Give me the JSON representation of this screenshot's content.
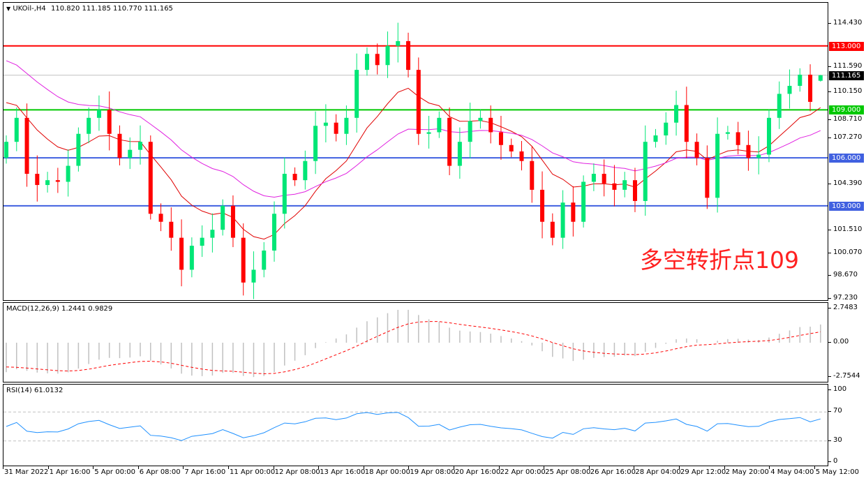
{
  "header": {
    "symbol": "UKOil-,H4",
    "ohlc": "110.820 111.185 110.770 111.165",
    "dropdown_icon": "triangle-down-icon"
  },
  "annotation": "多空转折点109",
  "price_axis": [
    "114.430",
    "111.590",
    "110.150",
    "108.710",
    "107.270",
    "104.390",
    "101.510",
    "100.070",
    "98.670",
    "97.230"
  ],
  "levels": [
    {
      "label": "113.000",
      "value": 113.0,
      "color": "#ff0000"
    },
    {
      "label": "109.000",
      "value": 109.0,
      "color": "#00c800"
    },
    {
      "label": "106.000",
      "value": 106.0,
      "color": "#4060e0"
    },
    {
      "label": "103.000",
      "value": 103.0,
      "color": "#4060e0"
    }
  ],
  "current_price": {
    "label": "111.165",
    "value": 111.165
  },
  "macd": {
    "title": "MACD(12,26,9) 1.2441 0.9829",
    "axis": [
      "2.7483",
      "0.00",
      "-2.7544"
    ]
  },
  "rsi": {
    "title": "RSI(14) 61.0132",
    "axis": [
      "100",
      "70",
      "30",
      "0"
    ]
  },
  "time_axis": [
    "31 Mar 2022",
    "1 Apr 16:00",
    "5 Apr 00:00",
    "6 Apr 08:00",
    "7 Apr 16:00",
    "11 Apr 00:00",
    "12 Apr 08:00",
    "13 Apr 16:00",
    "18 Apr 00:00",
    "19 Apr 08:00",
    "20 Apr 16:00",
    "22 Apr 00:00",
    "25 Apr 08:00",
    "26 Apr 16:00",
    "28 Apr 04:00",
    "29 Apr 12:00",
    "2 May 20:00",
    "4 May 04:00",
    "5 May 12:00"
  ],
  "colors": {
    "bull": "#00e676",
    "bear": "#ff0000",
    "ma_fast": "#e00000",
    "ma_slow": "#e020e0",
    "macd_signal": "#ff0000",
    "macd_hist": "#c0c0c0",
    "rsi_line": "#1e90ff"
  },
  "chart_data": {
    "type": "candlestick",
    "ylim": [
      97.23,
      114.43
    ],
    "first_open": 106.0,
    "last_bar": {
      "open": 110.82,
      "high": 111.185,
      "low": 110.77,
      "close": 111.165
    },
    "closes": [
      107,
      108.5,
      105,
      104.3,
      104.6,
      104.5,
      105.5,
      107.5,
      108.5,
      109,
      107.5,
      106,
      106.5,
      107,
      102.5,
      102,
      101,
      99,
      100.5,
      101,
      101.5,
      103,
      101,
      98.2,
      99,
      100.2,
      102.5,
      105,
      104.6,
      105.8,
      108,
      108.2,
      107.5,
      108.5,
      111.5,
      112.5,
      111.8,
      113,
      113.3,
      111.5,
      107.5,
      107.6,
      108.5,
      105.5,
      107,
      108.3,
      108.5,
      107.6,
      106.8,
      106.4,
      105.8,
      104,
      102,
      101,
      103.2,
      102,
      104.5,
      105,
      104.4,
      104,
      104.6,
      103.3,
      107,
      107.4,
      108.2,
      109.3,
      107,
      106,
      103.5,
      107.5,
      107.6,
      106.8,
      106,
      106.2,
      108.5,
      110,
      110.5,
      111.2,
      109.5,
      111.165
    ]
  }
}
